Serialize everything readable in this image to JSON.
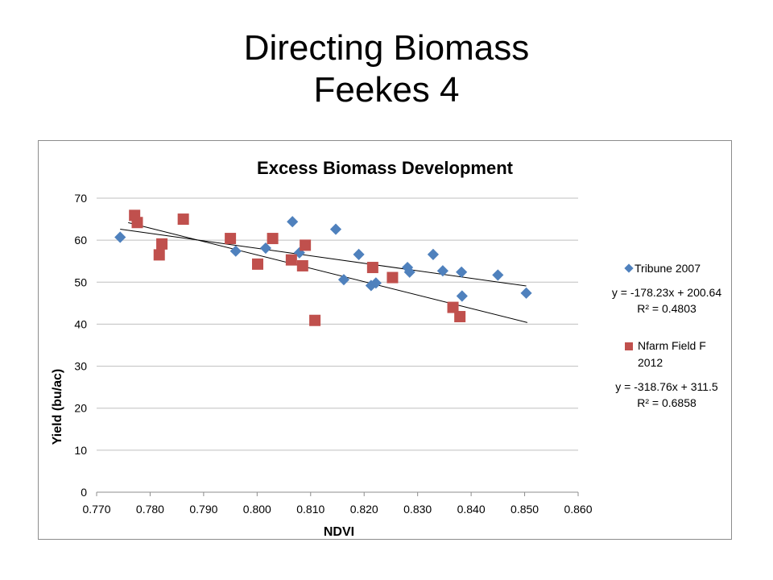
{
  "slide": {
    "title_line1": "Directing Biomass",
    "title_line2": "Feekes 4"
  },
  "chart_data": {
    "type": "scatter",
    "title": "Excess Biomass Development",
    "xlabel": "NDVI",
    "ylabel": "Yield (bu/ac)",
    "xlim": [
      0.77,
      0.86
    ],
    "ylim": [
      0,
      70
    ],
    "x_ticks": [
      "0.770",
      "0.780",
      "0.790",
      "0.800",
      "0.810",
      "0.820",
      "0.830",
      "0.840",
      "0.850",
      "0.860"
    ],
    "y_ticks": [
      "0",
      "10",
      "20",
      "30",
      "40",
      "50",
      "60",
      "70"
    ],
    "grid": "horizontal",
    "legend_position": "right",
    "series": [
      {
        "name": "Tribune 2007",
        "marker": "diamond",
        "color": "#4f81bd",
        "x": [
          0.7744,
          0.796,
          0.8016,
          0.8066,
          0.8079,
          0.8147,
          0.8162,
          0.819,
          0.8213,
          0.8222,
          0.8281,
          0.8285,
          0.8329,
          0.8347,
          0.8382,
          0.8383,
          0.845,
          0.8503
        ],
        "y": [
          60.7,
          57.4,
          58.1,
          64.4,
          57.0,
          62.6,
          50.6,
          56.6,
          49.2,
          49.8,
          53.5,
          52.4,
          56.6,
          52.7,
          52.4,
          46.7,
          51.7,
          47.4
        ],
        "trendline": {
          "equation": "y = -178.23x + 200.64",
          "r2": "R² = 0.4803",
          "slope": -178.23,
          "intercept": 200.64,
          "x_range": [
            0.7744,
            0.8503
          ]
        }
      },
      {
        "name": "Nfarm Field F 2012",
        "legend_lines": [
          "Nfarm Field F",
          "2012"
        ],
        "marker": "square",
        "color": "#c0504d",
        "x": [
          0.7771,
          0.7776,
          0.7817,
          0.7822,
          0.7862,
          0.795,
          0.8001,
          0.8029,
          0.8064,
          0.8085,
          0.809,
          0.8108,
          0.8216,
          0.8253,
          0.8366,
          0.8379
        ],
        "y": [
          65.9,
          64.2,
          56.5,
          59.1,
          65.0,
          60.4,
          54.3,
          60.4,
          55.3,
          53.9,
          58.8,
          40.9,
          53.5,
          51.1,
          44.0,
          41.8
        ],
        "trendline": {
          "equation": "y = -318.76x + 311.5",
          "r2": "R² = 0.6858",
          "slope": -318.76,
          "intercept": 311.5,
          "x_range": [
            0.7759,
            0.8505
          ]
        }
      }
    ]
  }
}
